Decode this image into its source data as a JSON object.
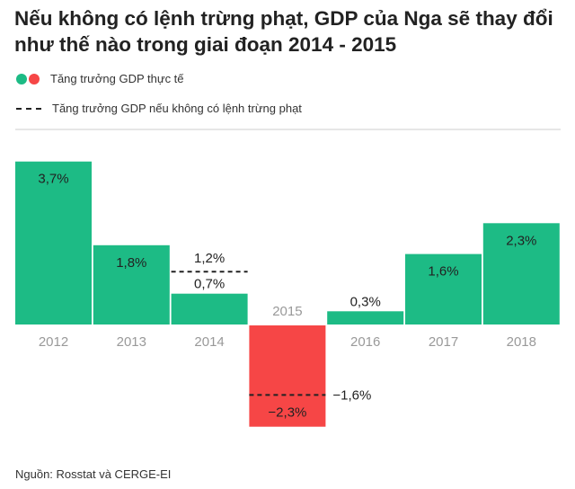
{
  "chart_data": {
    "type": "bar",
    "title": "Nếu không có lệnh trừng phạt, GDP của Nga sẽ thay đổi như thế nào trong giai đoạn 2014 - 2015",
    "categories": [
      "2012",
      "2013",
      "2014",
      "2015",
      "2016",
      "2017",
      "2018"
    ],
    "series": [
      {
        "name": "Tăng trưởng GDP thực tế",
        "values": [
          3.7,
          1.8,
          0.7,
          -2.3,
          0.3,
          1.6,
          2.3
        ],
        "labels": [
          "3,7%",
          "1,8%",
          "0,7%",
          "−2,3%",
          "0,3%",
          "1,6%",
          "2,3%"
        ]
      },
      {
        "name": "Tăng trưởng GDP nếu không có lệnh trừng phạt",
        "style": "dashed",
        "points": [
          {
            "category": "2014",
            "value": 1.2,
            "label": "1,2%"
          },
          {
            "category": "2015",
            "value": -1.6,
            "label": "−1,6%"
          }
        ]
      }
    ],
    "colors": {
      "positive": "#1dbb85",
      "negative": "#f64646",
      "dashed": "#222222"
    },
    "grid": false,
    "legend": "top-left",
    "source": "Nguồn: Rosstat và CERGE-EI"
  }
}
